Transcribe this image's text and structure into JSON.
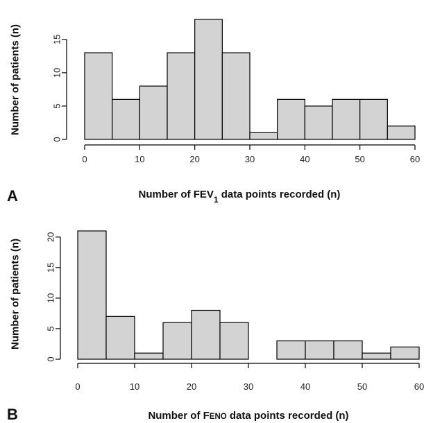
{
  "chart_data": [
    {
      "type": "bar",
      "panel": "A",
      "xlabel_prefix": "Number of FEV",
      "xlabel_sub": "1",
      "xlabel_suffix": " data points recorded (n)",
      "ylabel": "Number of patients (n)",
      "bin_edges": [
        0,
        5,
        10,
        15,
        20,
        25,
        30,
        35,
        40,
        45,
        50,
        55,
        60
      ],
      "values": [
        13,
        6,
        8,
        13,
        18,
        13,
        1,
        6,
        5,
        6,
        6,
        2
      ],
      "xlim": [
        0,
        60
      ],
      "ylim": [
        0,
        18
      ],
      "xticks": [
        0,
        10,
        20,
        30,
        40,
        50,
        60
      ],
      "yticks": [
        0,
        5,
        10,
        15
      ]
    },
    {
      "type": "bar",
      "panel": "B",
      "xlabel_prefix": "Number of F",
      "xlabel_small": "ENO",
      "xlabel_suffix": " data points recorded (n)",
      "ylabel": "Number of patients (n)",
      "bin_edges": [
        0,
        5,
        10,
        15,
        20,
        25,
        30,
        35,
        40,
        45,
        50,
        55,
        60
      ],
      "values": [
        21,
        7,
        1,
        6,
        8,
        6,
        0,
        3,
        3,
        3,
        1,
        2
      ],
      "xlim": [
        0,
        60
      ],
      "ylim": [
        0,
        21
      ],
      "xticks": [
        0,
        10,
        20,
        30,
        40,
        50,
        60
      ],
      "yticks": [
        0,
        5,
        10,
        15,
        20
      ]
    }
  ]
}
